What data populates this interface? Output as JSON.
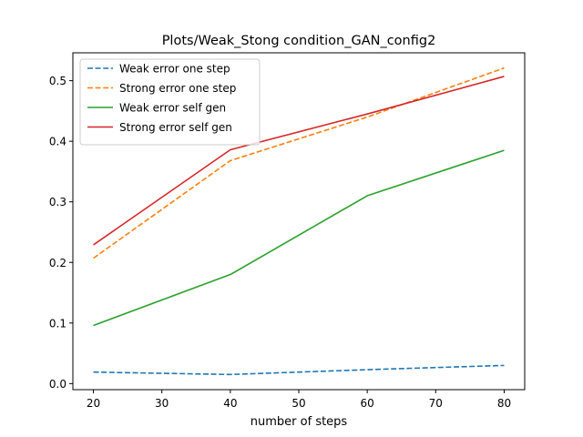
{
  "chart_data": {
    "type": "line",
    "title": "Plots/Weak_Stong condition_GAN_config2",
    "xlabel": "number of steps",
    "ylabel": "",
    "x": [
      20,
      40,
      60,
      80
    ],
    "xlim": [
      17,
      83
    ],
    "ylim": [
      -0.01,
      0.546
    ],
    "xticks": [
      20,
      30,
      40,
      50,
      60,
      70,
      80
    ],
    "yticks": [
      0.0,
      0.1,
      0.2,
      0.3,
      0.4,
      0.5
    ],
    "ytick_labels": [
      "0.0",
      "0.1",
      "0.2",
      "0.3",
      "0.4",
      "0.5"
    ],
    "grid": false,
    "legend_position": "top-left",
    "series": [
      {
        "name": "Weak error one step",
        "values": [
          0.019,
          0.015,
          0.023,
          0.03
        ],
        "color": "#1f77b4",
        "dash": "dashed"
      },
      {
        "name": "Strong error one step",
        "values": [
          0.207,
          0.368,
          0.44,
          0.521
        ],
        "color": "#ff7f0e",
        "dash": "dashed"
      },
      {
        "name": "Weak error self gen",
        "values": [
          0.096,
          0.18,
          0.31,
          0.385
        ],
        "color": "#2ca02c",
        "dash": "solid"
      },
      {
        "name": "Strong error self gen",
        "values": [
          0.229,
          0.386,
          0.445,
          0.507
        ],
        "color": "#d62728",
        "dash": "solid"
      }
    ]
  }
}
